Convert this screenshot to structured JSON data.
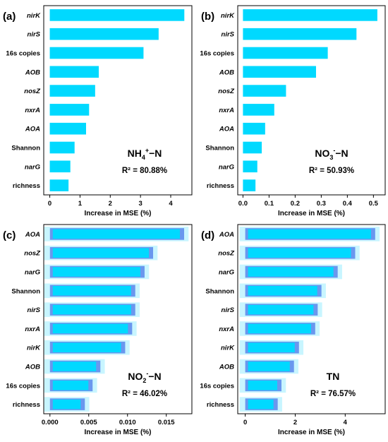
{
  "colors": {
    "bar": "#00D9FF",
    "bar_inner": "#6A97EE",
    "halo": "#C8F5FF",
    "frame": "#000000"
  },
  "chart_data": [
    {
      "panel": "(a)",
      "type": "bar",
      "orientation": "horizontal",
      "categories": [
        "nirK",
        "nirS",
        "16s copies",
        "AOB",
        "nosZ",
        "nxrA",
        "AOA",
        "Shannon",
        "narG",
        "richness"
      ],
      "italic_categories": [
        "nirK",
        "nirS",
        "AOB",
        "nosZ",
        "nxrA",
        "AOA",
        "narG"
      ],
      "values": [
        4.45,
        3.6,
        3.1,
        1.62,
        1.5,
        1.3,
        1.2,
        0.82,
        0.68,
        0.62
      ],
      "xlim": [
        -0.2,
        4.7
      ],
      "xticks": [
        "0",
        "1",
        "2",
        "3",
        "4"
      ],
      "xlabel": "Increase in MSE (%)",
      "annotation": {
        "variable": "NH",
        "sub": "4",
        "sup": "+",
        "suffix": "−N",
        "r2": "R² = 80.88%"
      }
    },
    {
      "panel": "(b)",
      "type": "bar",
      "orientation": "horizontal",
      "categories": [
        "nirK",
        "nirS",
        "16s copies",
        "AOB",
        "nosZ",
        "nxrA",
        "AOA",
        "Shannon",
        "narG",
        "richness"
      ],
      "italic_categories": [
        "nirK",
        "nirS",
        "AOB",
        "nosZ",
        "nxrA",
        "AOA",
        "narG"
      ],
      "values": [
        0.515,
        0.435,
        0.325,
        0.28,
        0.165,
        0.12,
        0.085,
        0.072,
        0.055,
        0.048
      ],
      "xlim": [
        -0.02,
        0.545
      ],
      "xticks": [
        "0.0",
        "0.1",
        "0.2",
        "0.3",
        "0.4",
        "0.5"
      ],
      "xlabel": "Increase in MSE (%)",
      "annotation": {
        "variable": "NO",
        "sub": "3",
        "sup": "-",
        "suffix": "−N",
        "r2": "R² = 50.93%"
      }
    },
    {
      "panel": "(c)",
      "type": "bar",
      "orientation": "horizontal",
      "categories": [
        "AOA",
        "nosZ",
        "narG",
        "Shannon",
        "nirS",
        "nxrA",
        "nirK",
        "AOB",
        "16s copies",
        "richness"
      ],
      "italic_categories": [
        "AOA",
        "nosZ",
        "narG",
        "nirS",
        "nxrA",
        "nirK",
        "AOB"
      ],
      "values": [
        0.0173,
        0.0133,
        0.0122,
        0.011,
        0.011,
        0.0106,
        0.0097,
        0.0065,
        0.0055,
        0.0045
      ],
      "xlim": [
        -0.0008,
        0.0183
      ],
      "xticks": [
        "0.000",
        "0.005",
        "0.010",
        "0.015"
      ],
      "xlabel": "Increase in MSE (%)",
      "annotation": {
        "variable": "NO",
        "sub": "2",
        "sup": "-",
        "suffix": "−N",
        "r2": "R² = 46.02%"
      }
    },
    {
      "panel": "(d)",
      "type": "bar",
      "orientation": "horizontal",
      "categories": [
        "AOA",
        "nosZ",
        "narG",
        "Shannon",
        "nirS",
        "nxrA",
        "nirK",
        "AOB",
        "16s copies",
        "richness"
      ],
      "italic_categories": [
        "AOA",
        "nosZ",
        "narG",
        "nirS",
        "nxrA",
        "nirK",
        "AOB"
      ],
      "values": [
        5.2,
        4.4,
        3.7,
        3.05,
        2.9,
        2.8,
        2.15,
        1.95,
        1.45,
        1.3
      ],
      "xlim": [
        -0.3,
        5.6
      ],
      "xticks": [
        "0",
        "2",
        "4"
      ],
      "xlabel": "Increase in MSE (%)",
      "annotation": {
        "variable": "TN",
        "sub": "",
        "sup": "",
        "suffix": "",
        "r2": "R² = 76.57%"
      }
    }
  ]
}
